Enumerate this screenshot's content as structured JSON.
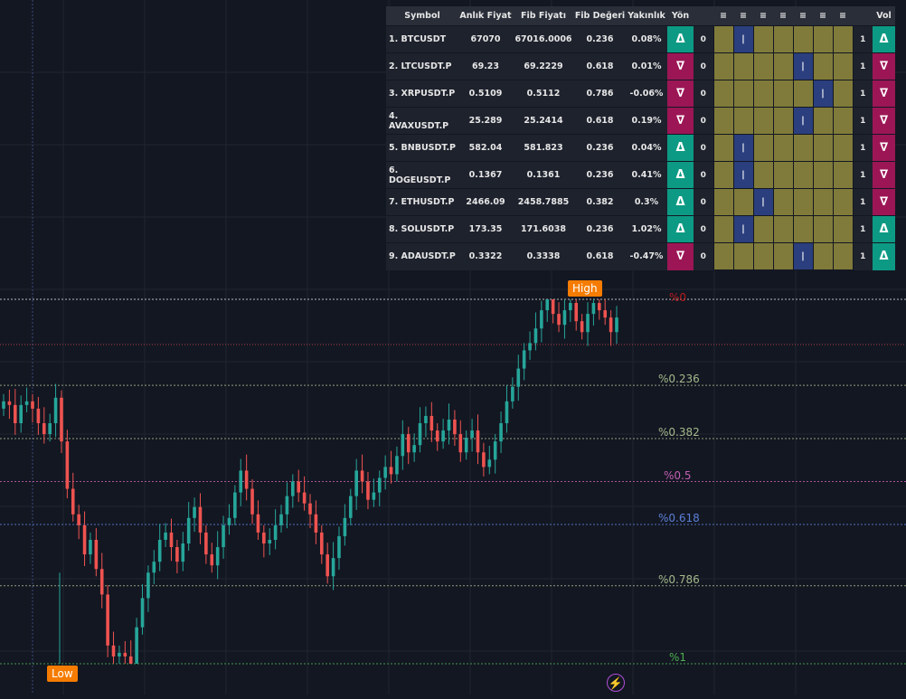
{
  "screener": {
    "headers": [
      "Symbol",
      "Anlık Fiyat",
      "Fib Fiyatı",
      "Fib Değeri",
      "Yakınlık",
      "Yön",
      "",
      "≡",
      "≡",
      "≡",
      "≡",
      "≡",
      "≡",
      "≡",
      "",
      "Vol"
    ],
    "rows": [
      {
        "symbol": "1. BTCUSDT",
        "price": "67070",
        "fib_price": "67016.0006",
        "fib_value": "0.236",
        "proximity": "0.08%",
        "direction": "Δ",
        "direction_state": "up",
        "count": "0",
        "level_index": 1,
        "level_mark": "|",
        "count2": "1",
        "vol": "Δ",
        "vol_state": "up"
      },
      {
        "symbol": "2. LTCUSDT.P",
        "price": "69.23",
        "fib_price": "69.2229",
        "fib_value": "0.618",
        "proximity": "0.01%",
        "direction": "∇",
        "direction_state": "down",
        "count": "0",
        "level_index": 4,
        "level_mark": "|",
        "count2": "1",
        "vol": "∇",
        "vol_state": "down"
      },
      {
        "symbol": "3. XRPUSDT.P",
        "price": "0.5109",
        "fib_price": "0.5112",
        "fib_value": "0.786",
        "proximity": "-0.06%",
        "direction": "∇",
        "direction_state": "down",
        "count": "0",
        "level_index": 5,
        "level_mark": "|",
        "count2": "1",
        "vol": "∇",
        "vol_state": "down"
      },
      {
        "symbol": "4. AVAXUSDT.P",
        "price": "25.289",
        "fib_price": "25.2414",
        "fib_value": "0.618",
        "proximity": "0.19%",
        "direction": "∇",
        "direction_state": "down",
        "count": "0",
        "level_index": 4,
        "level_mark": "|",
        "count2": "1",
        "vol": "∇",
        "vol_state": "down"
      },
      {
        "symbol": "5. BNBUSDT.P",
        "price": "582.04",
        "fib_price": "581.823",
        "fib_value": "0.236",
        "proximity": "0.04%",
        "direction": "Δ",
        "direction_state": "up",
        "count": "0",
        "level_index": 1,
        "level_mark": "|",
        "count2": "1",
        "vol": "∇",
        "vol_state": "down"
      },
      {
        "symbol": "6. DOGEUSDT.P",
        "price": "0.1367",
        "fib_price": "0.1361",
        "fib_value": "0.236",
        "proximity": "0.41%",
        "direction": "Δ",
        "direction_state": "up",
        "count": "0",
        "level_index": 1,
        "level_mark": "|",
        "count2": "1",
        "vol": "∇",
        "vol_state": "down"
      },
      {
        "symbol": "7. ETHUSDT.P",
        "price": "2466.09",
        "fib_price": "2458.7885",
        "fib_value": "0.382",
        "proximity": "0.3%",
        "direction": "Δ",
        "direction_state": "up",
        "count": "0",
        "level_index": 2,
        "level_mark": "|",
        "count2": "1",
        "vol": "∇",
        "vol_state": "down"
      },
      {
        "symbol": "8. SOLUSDT.P",
        "price": "173.35",
        "fib_price": "171.6038",
        "fib_value": "0.236",
        "proximity": "1.02%",
        "direction": "Δ",
        "direction_state": "up",
        "count": "0",
        "level_index": 1,
        "level_mark": "|",
        "count2": "1",
        "vol": "Δ",
        "vol_state": "up"
      },
      {
        "symbol": "9. ADAUSDT.P",
        "price": "0.3322",
        "fib_price": "0.3338",
        "fib_value": "0.618",
        "proximity": "-0.47%",
        "direction": "∇",
        "direction_state": "down",
        "count": "0",
        "level_index": 4,
        "level_mark": "|",
        "count2": "1",
        "vol": "Δ",
        "vol_state": "up"
      }
    ]
  },
  "fib_levels": [
    {
      "label": "%0",
      "color": "#b71c1c"
    },
    {
      "label": "%0.236",
      "color": "#a5b88a"
    },
    {
      "label": "%0.382",
      "color": "#a5b88a"
    },
    {
      "label": "%0.5",
      "color": "#c25fb1"
    },
    {
      "label": "%0.618",
      "color": "#5b7fd6"
    },
    {
      "label": "%0.786",
      "color": "#a5b88a"
    },
    {
      "label": "%1",
      "color": "#4caf50"
    }
  ],
  "badges": {
    "high": "High",
    "low": "Low"
  },
  "colors": {
    "bull": "#26a69a",
    "bear": "#ef5350",
    "background": "#131722",
    "grid": "#1f2430",
    "badge": "#f57c00",
    "bolt": "#b04fd6"
  },
  "icons": {
    "bolt": "lightning-bolt-icon"
  },
  "chart_data": {
    "type": "candlestick",
    "fib_ratios": [
      0,
      0.236,
      0.382,
      0.5,
      0.618,
      0.786,
      1
    ],
    "closes": [
      0.72,
      0.71,
      0.66,
      0.71,
      0.72,
      0.7,
      0.66,
      0.63,
      0.66,
      0.73,
      0.61,
      0.48,
      0.41,
      0.38,
      0.3,
      0.34,
      0.26,
      0.19,
      0.05,
      0.02,
      0.03,
      0.02,
      0.0,
      0.1,
      0.18,
      0.25,
      0.28,
      0.34,
      0.36,
      0.32,
      0.28,
      0.33,
      0.4,
      0.43,
      0.36,
      0.3,
      0.27,
      0.32,
      0.38,
      0.4,
      0.47,
      0.53,
      0.48,
      0.41,
      0.36,
      0.33,
      0.34,
      0.38,
      0.41,
      0.46,
      0.5,
      0.47,
      0.44,
      0.41,
      0.36,
      0.3,
      0.24,
      0.29,
      0.35,
      0.4,
      0.46,
      0.53,
      0.5,
      0.45,
      0.47,
      0.51,
      0.54,
      0.52,
      0.57,
      0.63,
      0.58,
      0.6,
      0.66,
      0.68,
      0.64,
      0.61,
      0.64,
      0.67,
      0.63,
      0.58,
      0.62,
      0.64,
      0.58,
      0.54,
      0.56,
      0.61,
      0.66,
      0.72,
      0.76,
      0.81,
      0.86,
      0.88,
      0.92,
      0.97,
      1.0,
      0.96,
      0.93,
      0.97,
      0.99,
      0.94,
      0.91,
      0.96,
      0.99,
      0.97,
      0.95,
      0.91,
      0.95
    ]
  }
}
